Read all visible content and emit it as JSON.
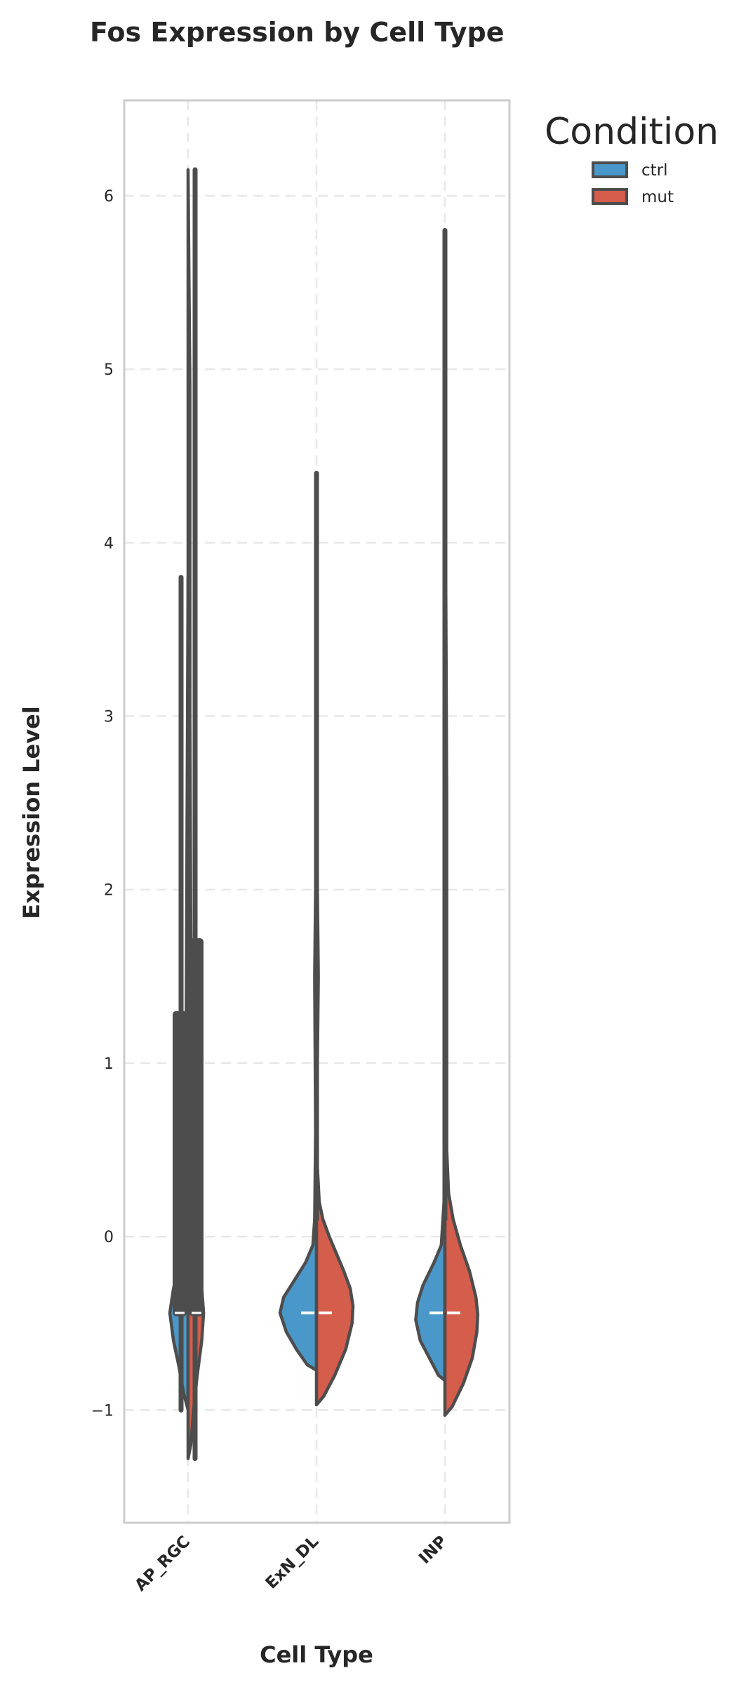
{
  "chart_data": {
    "type": "violin",
    "title": "Fos Expression by Cell Type",
    "xlabel": "Cell Type",
    "ylabel": "Expression Level",
    "categories": [
      "AP_RGC",
      "ExN_DL",
      "INP"
    ],
    "ylim": [
      -1.65,
      6.55
    ],
    "yticks": [
      -1,
      0,
      1,
      2,
      3,
      4,
      5,
      6
    ],
    "ytick_labels": [
      "−1",
      "0",
      "1",
      "2",
      "3",
      "4",
      "5",
      "6"
    ],
    "grid": true,
    "split": true,
    "legend": {
      "title": "Condition",
      "placement": "outside-top-right",
      "entries": [
        {
          "name": "ctrl",
          "color": "#4a98c9"
        },
        {
          "name": "mut",
          "color": "#d45d4c"
        }
      ]
    },
    "colors": {
      "ctrl": "#4a98c9",
      "mut": "#d45d4c",
      "outline": "#4d4d4d",
      "median": "#ffffff",
      "frame": "#cccccc",
      "grid": "#e8e8e8"
    },
    "series": [
      {
        "name": "ctrl",
        "violins": [
          {
            "category": "AP_RGC",
            "min": -1.0,
            "max": 3.8,
            "median": -0.44,
            "profile": [
              [
                -1.0,
                0.0
              ],
              [
                -0.9,
                0.05
              ],
              [
                -0.75,
                0.1
              ],
              [
                -0.6,
                0.16
              ],
              [
                -0.44,
                0.2
              ],
              [
                -0.3,
                0.16
              ],
              [
                -0.2,
                0.12
              ],
              [
                -0.1,
                0.07
              ],
              [
                0.0,
                0.03
              ],
              [
                0.2,
                0.02
              ],
              [
                1.3,
                0.02
              ],
              [
                3.8,
                0.0
              ]
            ]
          },
          {
            "category": "ExN_DL",
            "min": -0.77,
            "max": 4.4,
            "median": -0.44,
            "profile": [
              [
                -0.77,
                0.0
              ],
              [
                -0.74,
                0.1
              ],
              [
                -0.65,
                0.22
              ],
              [
                -0.55,
                0.33
              ],
              [
                -0.44,
                0.4
              ],
              [
                -0.35,
                0.36
              ],
              [
                -0.25,
                0.24
              ],
              [
                -0.15,
                0.12
              ],
              [
                -0.05,
                0.04
              ],
              [
                0.1,
                0.02
              ],
              [
                0.6,
                0.01
              ],
              [
                1.5,
                0.02
              ],
              [
                2.0,
                0.01
              ],
              [
                4.4,
                0.0
              ]
            ]
          },
          {
            "category": "INP",
            "min": -0.83,
            "max": 3.7,
            "median": -0.44,
            "profile": [
              [
                -0.83,
                0.0
              ],
              [
                -0.8,
                0.07
              ],
              [
                -0.7,
                0.17
              ],
              [
                -0.6,
                0.27
              ],
              [
                -0.48,
                0.32
              ],
              [
                -0.38,
                0.3
              ],
              [
                -0.28,
                0.24
              ],
              [
                -0.15,
                0.12
              ],
              [
                -0.05,
                0.04
              ],
              [
                0.2,
                0.01
              ],
              [
                3.7,
                0.0
              ]
            ]
          }
        ]
      },
      {
        "name": "mut",
        "violins": [
          {
            "category": "AP_RGC",
            "min": -1.28,
            "max": 6.15,
            "median": -0.44,
            "profile": [
              [
                -1.28,
                0.0
              ],
              [
                -1.2,
                0.03
              ],
              [
                -1.0,
                0.06
              ],
              [
                -0.8,
                0.1
              ],
              [
                -0.6,
                0.15
              ],
              [
                -0.44,
                0.17
              ],
              [
                -0.3,
                0.15
              ],
              [
                -0.15,
                0.09
              ],
              [
                0.0,
                0.05
              ],
              [
                0.3,
                0.04
              ],
              [
                1.7,
                0.03
              ],
              [
                3.0,
                0.02
              ],
              [
                4.9,
                0.02
              ],
              [
                6.15,
                0.0
              ]
            ]
          },
          {
            "category": "ExN_DL",
            "min": -0.97,
            "max": 4.4,
            "median": -0.44,
            "profile": [
              [
                -0.97,
                0.0
              ],
              [
                -0.92,
                0.08
              ],
              [
                -0.8,
                0.2
              ],
              [
                -0.65,
                0.32
              ],
              [
                -0.5,
                0.39
              ],
              [
                -0.4,
                0.4
              ],
              [
                -0.3,
                0.37
              ],
              [
                -0.2,
                0.3
              ],
              [
                -0.1,
                0.22
              ],
              [
                0.0,
                0.14
              ],
              [
                0.1,
                0.07
              ],
              [
                0.2,
                0.03
              ],
              [
                0.4,
                0.01
              ],
              [
                1.0,
                0.01
              ],
              [
                1.5,
                0.02
              ],
              [
                2.0,
                0.01
              ],
              [
                4.4,
                0.0
              ]
            ]
          },
          {
            "category": "INP",
            "min": -1.03,
            "max": 5.8,
            "median": -0.44,
            "profile": [
              [
                -1.03,
                0.0
              ],
              [
                -0.98,
                0.08
              ],
              [
                -0.85,
                0.2
              ],
              [
                -0.7,
                0.3
              ],
              [
                -0.55,
                0.35
              ],
              [
                -0.45,
                0.36
              ],
              [
                -0.35,
                0.34
              ],
              [
                -0.2,
                0.27
              ],
              [
                -0.05,
                0.17
              ],
              [
                0.1,
                0.09
              ],
              [
                0.25,
                0.04
              ],
              [
                0.5,
                0.02
              ],
              [
                1.5,
                0.02
              ],
              [
                2.5,
                0.02
              ],
              [
                3.7,
                0.01
              ],
              [
                5.8,
                0.0
              ]
            ]
          }
        ]
      }
    ]
  }
}
